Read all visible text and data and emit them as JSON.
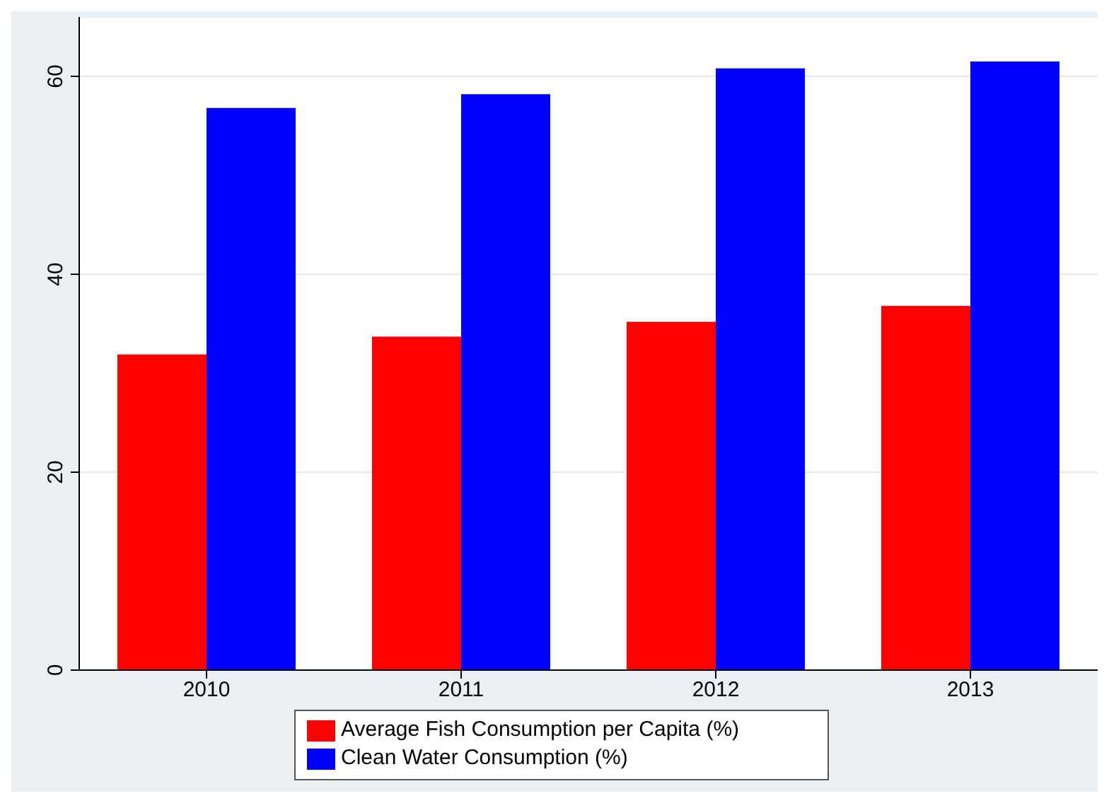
{
  "chart_data": {
    "type": "bar",
    "categories": [
      "2010",
      "2011",
      "2012",
      "2013"
    ],
    "series": [
      {
        "name": "Average Fish Consumption per Capita (%)",
        "color": "#ff0000",
        "values": [
          31.9,
          33.7,
          35.2,
          36.8
        ]
      },
      {
        "name": "Clean Water Consumption (%)",
        "color": "#0000ff",
        "values": [
          56.8,
          58.2,
          60.8,
          61.5
        ]
      }
    ],
    "ylim": [
      0,
      66
    ],
    "yticks": [
      0,
      20,
      40,
      60
    ],
    "grid": "y",
    "legend": "bottom"
  }
}
